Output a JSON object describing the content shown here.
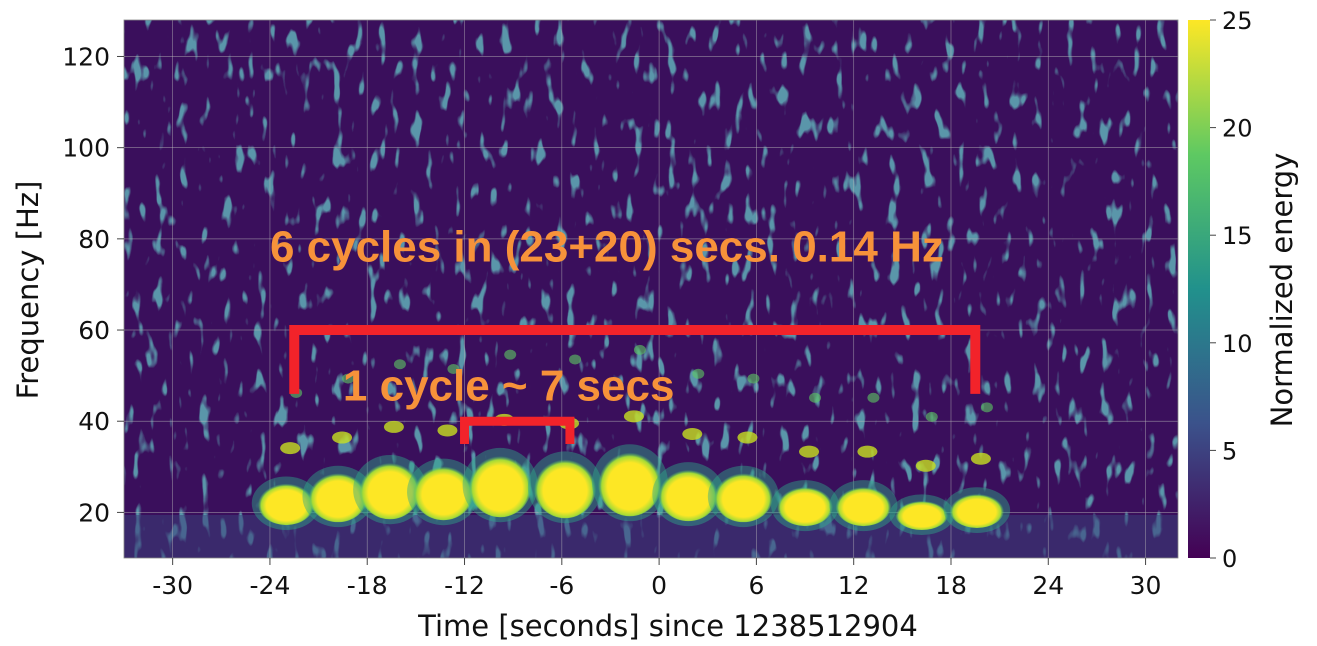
{
  "chart_data": {
    "type": "heatmap",
    "xlabel": "Time [seconds] since 1238512904",
    "ylabel": "Frequency [Hz]",
    "xlim": [
      -33,
      32
    ],
    "ylim": [
      10,
      128
    ],
    "xticks": [
      "-30",
      "-24",
      "-18",
      "-12",
      "-6",
      "0",
      "6",
      "12",
      "18",
      "24",
      "30"
    ],
    "yticks": [
      "20",
      "40",
      "60",
      "80",
      "100",
      "120"
    ],
    "grid": true,
    "colorbar": {
      "label": "Normalized energy",
      "range": [
        0,
        25
      ],
      "ticks": [
        "0",
        "5",
        "10",
        "15",
        "20",
        "25"
      ],
      "colormap": [
        "#440154",
        "#3b528b",
        "#21918c",
        "#5ec962",
        "#fde725"
      ]
    },
    "blobs": [
      {
        "t": -23,
        "f": 22
      },
      {
        "t": -19.8,
        "f": 23.5
      },
      {
        "t": -16.6,
        "f": 25
      },
      {
        "t": -13.3,
        "f": 24.5
      },
      {
        "t": -9.8,
        "f": 26
      },
      {
        "t": -5.8,
        "f": 25.5
      },
      {
        "t": -1.8,
        "f": 26.5
      },
      {
        "t": 1.8,
        "f": 24
      },
      {
        "t": 5.2,
        "f": 23.5
      },
      {
        "t": 9,
        "f": 21.5
      },
      {
        "t": 12.6,
        "f": 21.5
      },
      {
        "t": 16.2,
        "f": 19.5
      },
      {
        "t": 19.6,
        "f": 20.5
      }
    ],
    "brackets": [
      {
        "x_start": -22.5,
        "x_end": 19.5,
        "y": 60,
        "y_end": 46
      },
      {
        "x_start": -12,
        "x_end": -5.5,
        "y": 40,
        "y_end": 35
      }
    ],
    "annotations": [
      {
        "text": "6 cycles in (23+20) secs. 0.14 Hz",
        "t": -24,
        "f": 75,
        "color": "#f7923a"
      },
      {
        "text": "1 cycle ~ 7 secs",
        "t": -19.5,
        "f": 44.5,
        "color": "#f7923a"
      }
    ],
    "bracket_color": "#f2232a"
  }
}
